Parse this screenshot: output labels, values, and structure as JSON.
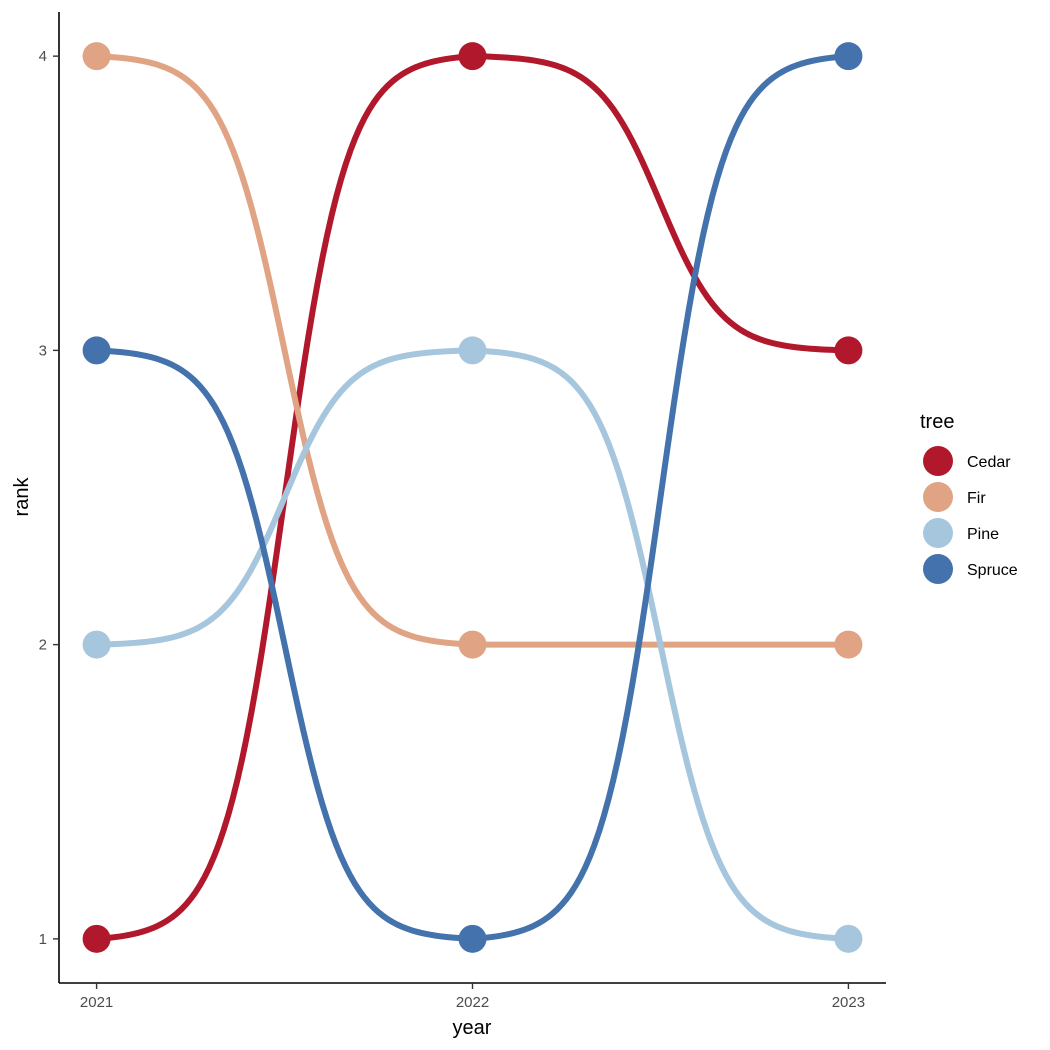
{
  "chart_data": {
    "type": "line",
    "subtype": "bump",
    "xlabel": "year",
    "ylabel": "rank",
    "x": [
      2021,
      2022,
      2023
    ],
    "x_tick_labels": [
      "2021",
      "2022",
      "2023"
    ],
    "y_ticks": [
      1,
      2,
      3,
      4
    ],
    "y_tick_labels": [
      "1",
      "2",
      "3",
      "4"
    ],
    "xlim": [
      2020.9,
      2023.1
    ],
    "ylim": [
      0.85,
      4.15
    ],
    "grid": false,
    "legend": {
      "title": "tree",
      "position": "right"
    },
    "series": [
      {
        "name": "Cedar",
        "color": "#B2182B",
        "values": [
          1,
          4,
          3
        ]
      },
      {
        "name": "Fir",
        "color": "#E0A383",
        "values": [
          4,
          2,
          2
        ]
      },
      {
        "name": "Pine",
        "color": "#A6C6DE",
        "values": [
          2,
          3,
          1
        ]
      },
      {
        "name": "Spruce",
        "color": "#4372AC",
        "values": [
          3,
          1,
          4
        ]
      }
    ]
  }
}
